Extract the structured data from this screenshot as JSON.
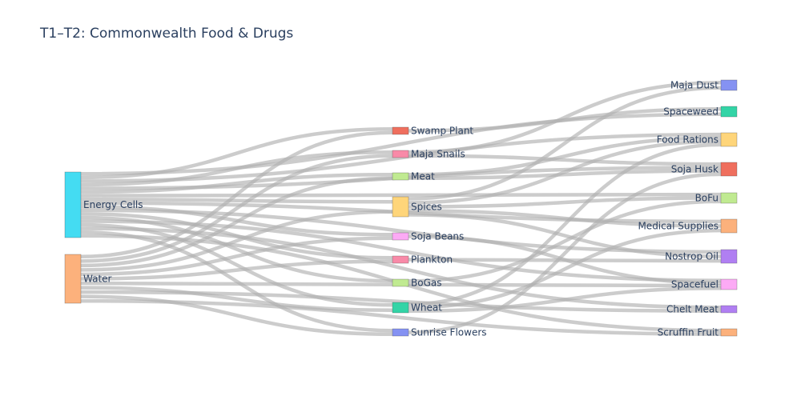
{
  "chart_data": {
    "type": "sankey",
    "title": "T1–T2: Commonwealth Food & Drugs",
    "nodes": [
      {
        "id": "energy",
        "label": "Energy Cells",
        "color": "#44dcf2"
      },
      {
        "id": "water",
        "label": "Water",
        "color": "#fcb17c"
      },
      {
        "id": "swamp",
        "label": "Swamp Plant",
        "color": "#ef6f5e"
      },
      {
        "id": "snails",
        "label": "Maja Snails",
        "color": "#f88aa8"
      },
      {
        "id": "meat",
        "label": "Meat",
        "color": "#c0ea91"
      },
      {
        "id": "spices",
        "label": "Spices",
        "color": "#fed57a"
      },
      {
        "id": "soja",
        "label": "Soja Beans",
        "color": "#fcaaf5"
      },
      {
        "id": "plankton",
        "label": "Plankton",
        "color": "#f88aa8"
      },
      {
        "id": "bogas",
        "label": "BoGas",
        "color": "#c0ea91"
      },
      {
        "id": "wheat",
        "label": "Wheat",
        "color": "#33d4a6"
      },
      {
        "id": "sunrise",
        "label": "Sunrise Flowers",
        "color": "#8592f2"
      },
      {
        "id": "majadust",
        "label": "Maja Dust",
        "color": "#8592f2"
      },
      {
        "id": "spaceweed",
        "label": "Spaceweed",
        "color": "#33d4a6"
      },
      {
        "id": "rations",
        "label": "Food Rations",
        "color": "#fed57a"
      },
      {
        "id": "sojahusk",
        "label": "Soja Husk",
        "color": "#ef6f5e"
      },
      {
        "id": "bofu",
        "label": "BoFu",
        "color": "#c0ea91"
      },
      {
        "id": "medical",
        "label": "Medical Supplies",
        "color": "#fcb17c"
      },
      {
        "id": "nostrop",
        "label": "Nostrop Oil",
        "color": "#b07ff2"
      },
      {
        "id": "spacefuel",
        "label": "Spacefuel",
        "color": "#fcaaf5"
      },
      {
        "id": "chelt",
        "label": "Chelt Meat",
        "color": "#b07ff2"
      },
      {
        "id": "scruffin",
        "label": "Scruffin Fruit",
        "color": "#fcb17c"
      }
    ],
    "links": [
      {
        "source": "energy",
        "target": "swamp",
        "value": 1
      },
      {
        "source": "energy",
        "target": "snails",
        "value": 1
      },
      {
        "source": "energy",
        "target": "meat",
        "value": 1
      },
      {
        "source": "energy",
        "target": "spices",
        "value": 1
      },
      {
        "source": "energy",
        "target": "soja",
        "value": 1
      },
      {
        "source": "energy",
        "target": "plankton",
        "value": 1
      },
      {
        "source": "energy",
        "target": "bogas",
        "value": 1
      },
      {
        "source": "energy",
        "target": "wheat",
        "value": 1
      },
      {
        "source": "energy",
        "target": "sunrise",
        "value": 1
      },
      {
        "source": "energy",
        "target": "spaceweed",
        "value": 1
      },
      {
        "source": "energy",
        "target": "rations",
        "value": 1
      },
      {
        "source": "energy",
        "target": "sojahusk",
        "value": 1
      },
      {
        "source": "energy",
        "target": "bofu",
        "value": 1
      },
      {
        "source": "energy",
        "target": "medical",
        "value": 1
      },
      {
        "source": "energy",
        "target": "nostrop",
        "value": 1
      },
      {
        "source": "energy",
        "target": "spacefuel",
        "value": 1
      },
      {
        "source": "energy",
        "target": "chelt",
        "value": 1
      },
      {
        "source": "energy",
        "target": "scruffin",
        "value": 1
      },
      {
        "source": "water",
        "target": "swamp",
        "value": 1
      },
      {
        "source": "water",
        "target": "snails",
        "value": 1
      },
      {
        "source": "water",
        "target": "meat",
        "value": 1
      },
      {
        "source": "water",
        "target": "spices",
        "value": 1
      },
      {
        "source": "water",
        "target": "soja",
        "value": 1
      },
      {
        "source": "water",
        "target": "plankton",
        "value": 1
      },
      {
        "source": "water",
        "target": "bogas",
        "value": 1
      },
      {
        "source": "water",
        "target": "wheat",
        "value": 1
      },
      {
        "source": "water",
        "target": "sunrise",
        "value": 1
      },
      {
        "source": "water",
        "target": "chelt",
        "value": 1
      },
      {
        "source": "water",
        "target": "scruffin",
        "value": 1
      },
      {
        "source": "swamp",
        "target": "spaceweed",
        "value": 1
      },
      {
        "source": "snails",
        "target": "majadust",
        "value": 1
      },
      {
        "source": "snails",
        "target": "sojahusk",
        "value": 1
      },
      {
        "source": "meat",
        "target": "rations",
        "value": 1
      },
      {
        "source": "meat",
        "target": "sojahusk",
        "value": 1
      },
      {
        "source": "spices",
        "target": "majadust",
        "value": 1
      },
      {
        "source": "spices",
        "target": "rations",
        "value": 1
      },
      {
        "source": "spices",
        "target": "bofu",
        "value": 1
      },
      {
        "source": "spices",
        "target": "medical",
        "value": 1
      },
      {
        "source": "spices",
        "target": "nostrop",
        "value": 1
      },
      {
        "source": "soja",
        "target": "spacefuel",
        "value": 1
      },
      {
        "source": "plankton",
        "target": "nostrop",
        "value": 1
      },
      {
        "source": "bogas",
        "target": "bofu",
        "value": 1
      },
      {
        "source": "bogas",
        "target": "spacefuel",
        "value": 1
      },
      {
        "source": "wheat",
        "target": "rations",
        "value": 1
      },
      {
        "source": "wheat",
        "target": "medical",
        "value": 1
      },
      {
        "source": "wheat",
        "target": "spacefuel",
        "value": 1
      },
      {
        "source": "sunrise",
        "target": "sojahusk",
        "value": 1
      }
    ],
    "link_color": "#b0b0b0"
  }
}
